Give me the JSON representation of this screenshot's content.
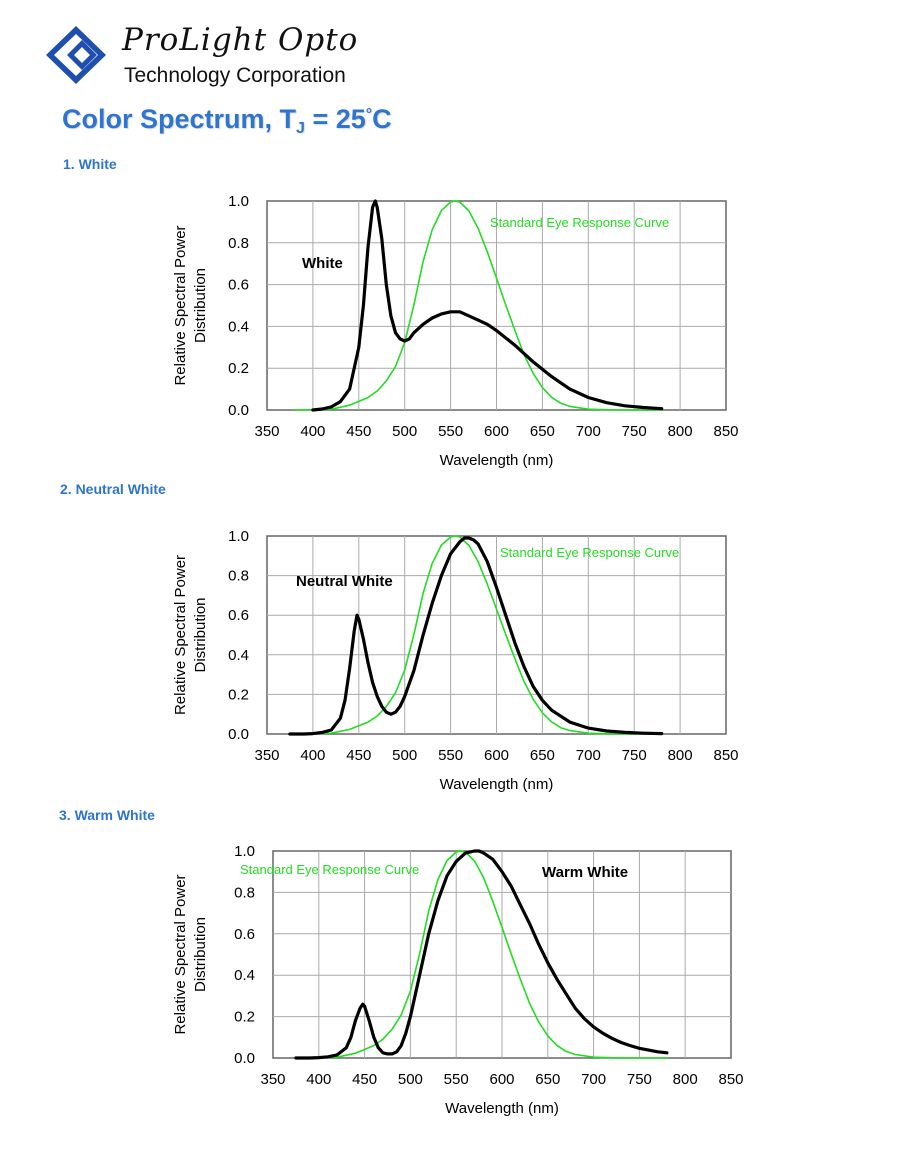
{
  "brand": {
    "name": "ProLight Opto",
    "subtitle": "Technology Corporation"
  },
  "page_title": {
    "main": "Color Spectrum, T",
    "subscript": "J",
    "equals": " = 25",
    "degree": "°",
    "unit": "C"
  },
  "sections": [
    {
      "label": "1. White"
    },
    {
      "label": "2. Neutral White"
    },
    {
      "label": "3. Warm White"
    }
  ],
  "colors": {
    "title_blue": "#2e74d0",
    "eye_curve": "#22dd22",
    "led_curve": "#000000",
    "grid": "#aaaaaa"
  },
  "chart_data": [
    {
      "type": "line",
      "title": "White",
      "xlabel": "Wavelength (nm)",
      "ylabel": [
        "Relative Spectral Power",
        "Distribution"
      ],
      "xlim": [
        350,
        850
      ],
      "ylim": [
        0,
        1.0
      ],
      "xticks": [
        "350",
        "400",
        "450",
        "500",
        "550",
        "600",
        "650",
        "700",
        "750",
        "800",
        "850"
      ],
      "yticks": [
        "0.0",
        "0.2",
        "0.4",
        "0.6",
        "0.8",
        "1.0"
      ],
      "annotations": {
        "series_label": "White",
        "eye_label": "Standard Eye Response Curve"
      },
      "eye_label_pos": "top-right",
      "series_label_pos": "left",
      "series": [
        {
          "name": "White",
          "x": [
            400,
            410,
            420,
            430,
            440,
            450,
            455,
            460,
            465,
            468,
            470,
            475,
            480,
            485,
            490,
            495,
            500,
            505,
            510,
            520,
            530,
            540,
            550,
            560,
            570,
            580,
            590,
            600,
            620,
            640,
            660,
            680,
            700,
            720,
            740,
            760,
            780
          ],
          "y": [
            0.0,
            0.005,
            0.015,
            0.04,
            0.1,
            0.3,
            0.5,
            0.78,
            0.97,
            1.0,
            0.97,
            0.82,
            0.6,
            0.45,
            0.37,
            0.34,
            0.33,
            0.34,
            0.37,
            0.41,
            0.44,
            0.46,
            0.47,
            0.47,
            0.45,
            0.43,
            0.41,
            0.38,
            0.31,
            0.23,
            0.16,
            0.1,
            0.06,
            0.035,
            0.02,
            0.012,
            0.006
          ]
        },
        {
          "name": "Standard Eye Response Curve",
          "x": [
            380,
            400,
            420,
            440,
            460,
            470,
            480,
            490,
            500,
            510,
            520,
            530,
            540,
            550,
            555,
            560,
            570,
            580,
            590,
            600,
            610,
            620,
            630,
            640,
            650,
            660,
            670,
            680,
            700,
            720,
            740,
            760,
            780
          ],
          "y": [
            0.0,
            0.001,
            0.004,
            0.023,
            0.06,
            0.091,
            0.139,
            0.208,
            0.323,
            0.503,
            0.71,
            0.862,
            0.954,
            0.995,
            1.0,
            0.995,
            0.952,
            0.87,
            0.757,
            0.631,
            0.503,
            0.381,
            0.265,
            0.175,
            0.107,
            0.061,
            0.032,
            0.017,
            0.004,
            0.001,
            0.0,
            0.0,
            0.0
          ]
        }
      ]
    },
    {
      "type": "line",
      "title": "Neutral White",
      "xlabel": "Wavelength (nm)",
      "ylabel": [
        "Relative Spectral Power",
        "Distribution"
      ],
      "xlim": [
        350,
        850
      ],
      "ylim": [
        0,
        1.0
      ],
      "xticks": [
        "350",
        "400",
        "450",
        "500",
        "550",
        "600",
        "650",
        "700",
        "750",
        "800",
        "850"
      ],
      "yticks": [
        "0.0",
        "0.2",
        "0.4",
        "0.6",
        "0.8",
        "1.0"
      ],
      "annotations": {
        "series_label": "Neutral White",
        "eye_label": "Standard Eye Response Curve"
      },
      "eye_label_pos": "top-right",
      "series_label_pos": "left",
      "series": [
        {
          "name": "Neutral White",
          "x": [
            375,
            390,
            400,
            410,
            420,
            430,
            435,
            440,
            445,
            448,
            450,
            455,
            460,
            465,
            470,
            475,
            480,
            485,
            490,
            495,
            500,
            510,
            520,
            530,
            540,
            550,
            560,
            565,
            570,
            575,
            580,
            590,
            600,
            610,
            620,
            630,
            640,
            650,
            660,
            680,
            700,
            720,
            740,
            760,
            780
          ],
          "y": [
            0.0,
            0.0,
            0.002,
            0.008,
            0.02,
            0.08,
            0.17,
            0.33,
            0.52,
            0.6,
            0.58,
            0.48,
            0.36,
            0.26,
            0.19,
            0.14,
            0.11,
            0.1,
            0.11,
            0.14,
            0.19,
            0.32,
            0.5,
            0.66,
            0.8,
            0.91,
            0.97,
            0.99,
            0.99,
            0.98,
            0.96,
            0.87,
            0.74,
            0.6,
            0.46,
            0.34,
            0.24,
            0.17,
            0.12,
            0.06,
            0.03,
            0.015,
            0.008,
            0.004,
            0.002
          ]
        },
        {
          "name": "Standard Eye Response Curve",
          "x": [
            380,
            400,
            420,
            440,
            460,
            470,
            480,
            490,
            500,
            510,
            520,
            530,
            540,
            550,
            555,
            560,
            570,
            580,
            590,
            600,
            610,
            620,
            630,
            640,
            650,
            660,
            670,
            680,
            700,
            720,
            740,
            760,
            780
          ],
          "y": [
            0.0,
            0.001,
            0.004,
            0.023,
            0.06,
            0.091,
            0.139,
            0.208,
            0.323,
            0.503,
            0.71,
            0.862,
            0.954,
            0.995,
            1.0,
            0.995,
            0.952,
            0.87,
            0.757,
            0.631,
            0.503,
            0.381,
            0.265,
            0.175,
            0.107,
            0.061,
            0.032,
            0.017,
            0.004,
            0.001,
            0.0,
            0.0,
            0.0
          ]
        }
      ]
    },
    {
      "type": "line",
      "title": "Warm White",
      "xlabel": "Wavelength (nm)",
      "ylabel": [
        "Relative Spectral Power",
        "Distribution"
      ],
      "xlim": [
        350,
        850
      ],
      "ylim": [
        0,
        1.0
      ],
      "xticks": [
        "350",
        "400",
        "450",
        "500",
        "550",
        "600",
        "650",
        "700",
        "750",
        "800",
        "850"
      ],
      "yticks": [
        "0.0",
        "0.2",
        "0.4",
        "0.6",
        "0.8",
        "1.0"
      ],
      "annotations": {
        "series_label": "Warm White",
        "eye_label": "Standard Eye Response Curve"
      },
      "eye_label_pos": "top-left",
      "series_label_pos": "right",
      "series": [
        {
          "name": "Warm White",
          "x": [
            375,
            390,
            400,
            410,
            420,
            430,
            435,
            440,
            445,
            448,
            450,
            455,
            460,
            465,
            470,
            475,
            480,
            485,
            490,
            495,
            500,
            510,
            520,
            530,
            540,
            550,
            560,
            570,
            575,
            580,
            590,
            600,
            610,
            620,
            630,
            640,
            650,
            660,
            670,
            680,
            690,
            700,
            710,
            720,
            730,
            740,
            750,
            760,
            770,
            780
          ],
          "y": [
            0.0,
            0.0,
            0.002,
            0.006,
            0.015,
            0.05,
            0.1,
            0.18,
            0.24,
            0.26,
            0.25,
            0.18,
            0.1,
            0.05,
            0.025,
            0.02,
            0.02,
            0.03,
            0.06,
            0.12,
            0.2,
            0.4,
            0.6,
            0.76,
            0.88,
            0.95,
            0.99,
            1.0,
            1.0,
            0.99,
            0.96,
            0.9,
            0.83,
            0.74,
            0.65,
            0.55,
            0.46,
            0.38,
            0.31,
            0.24,
            0.19,
            0.15,
            0.12,
            0.095,
            0.075,
            0.06,
            0.047,
            0.038,
            0.03,
            0.025
          ]
        },
        {
          "name": "Standard Eye Response Curve",
          "x": [
            380,
            400,
            420,
            440,
            460,
            470,
            480,
            490,
            500,
            510,
            520,
            530,
            540,
            550,
            555,
            560,
            570,
            580,
            590,
            600,
            610,
            620,
            630,
            640,
            650,
            660,
            670,
            680,
            700,
            720,
            740,
            760,
            780
          ],
          "y": [
            0.0,
            0.001,
            0.004,
            0.023,
            0.06,
            0.091,
            0.139,
            0.208,
            0.323,
            0.503,
            0.71,
            0.862,
            0.954,
            0.995,
            1.0,
            0.995,
            0.952,
            0.87,
            0.757,
            0.631,
            0.503,
            0.381,
            0.265,
            0.175,
            0.107,
            0.061,
            0.032,
            0.017,
            0.004,
            0.001,
            0.0,
            0.0,
            0.0
          ]
        }
      ]
    }
  ]
}
